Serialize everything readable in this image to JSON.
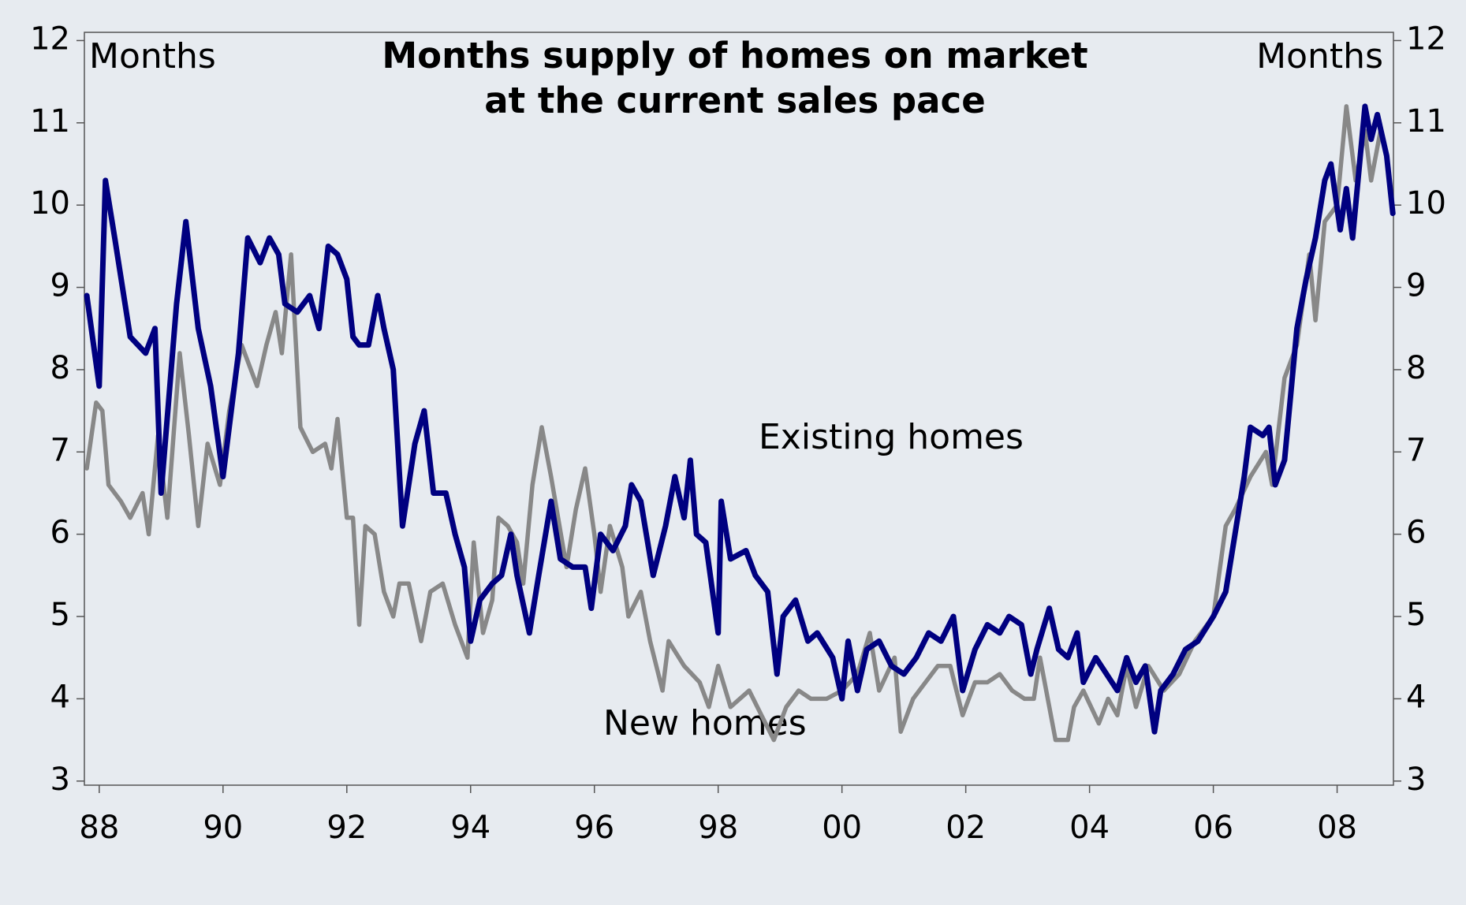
{
  "chart_data": {
    "type": "line",
    "title": [
      "Months supply of homes on market",
      "at the current sales pace"
    ],
    "ylabel": "Months",
    "y2label": "Months",
    "annotations": [
      "Existing homes",
      "New homes"
    ],
    "xlim": [
      1987.76,
      2008.91
    ],
    "xticks": [
      {
        "value": 1988,
        "label": "88"
      },
      {
        "value": 1990,
        "label": "90"
      },
      {
        "value": 1992,
        "label": "92"
      },
      {
        "value": 1994,
        "label": "94"
      },
      {
        "value": 1996,
        "label": "96"
      },
      {
        "value": 1998,
        "label": "98"
      },
      {
        "value": 2000,
        "label": "00"
      },
      {
        "value": 2002,
        "label": "02"
      },
      {
        "value": 2004,
        "label": "04"
      },
      {
        "value": 2006,
        "label": "06"
      },
      {
        "value": 2008,
        "label": "08"
      }
    ],
    "ylim": [
      2.95,
      12.1
    ],
    "yticks": [
      3,
      4,
      5,
      6,
      7,
      8,
      9,
      10,
      11,
      12
    ],
    "y2lim": [
      2.95,
      12.1
    ],
    "y2ticks": [
      3,
      4,
      5,
      6,
      7,
      8,
      9,
      10,
      11,
      12
    ],
    "grid": false,
    "series": [
      {
        "name": "New homes",
        "color": "#888888",
        "x": [
          1987.8,
          1987.95,
          1988.05,
          1988.15,
          1988.35,
          1988.5,
          1988.7,
          1988.8,
          1988.95,
          1989.1,
          1989.3,
          1989.45,
          1989.6,
          1989.75,
          1989.95,
          1990.1,
          1990.3,
          1990.55,
          1990.7,
          1990.85,
          1990.95,
          1991.1,
          1991.25,
          1991.45,
          1991.65,
          1991.75,
          1991.85,
          1992.0,
          1992.1,
          1992.2,
          1992.3,
          1992.45,
          1992.6,
          1992.75,
          1992.85,
          1993.0,
          1993.2,
          1993.35,
          1993.55,
          1993.75,
          1993.95,
          1994.05,
          1994.2,
          1994.35,
          1994.45,
          1994.6,
          1994.75,
          1994.85,
          1995.0,
          1995.15,
          1995.3,
          1995.55,
          1995.7,
          1995.85,
          1996.0,
          1996.1,
          1996.25,
          1996.45,
          1996.55,
          1996.75,
          1996.9,
          1997.1,
          1997.2,
          1997.45,
          1997.7,
          1997.85,
          1998.0,
          1998.2,
          1998.5,
          1998.7,
          1998.9,
          1999.1,
          1999.3,
          1999.5,
          1999.75,
          2000.0,
          2000.25,
          2000.45,
          2000.6,
          2000.85,
          2000.95,
          2001.15,
          2001.35,
          2001.55,
          2001.75,
          2001.95,
          2002.15,
          2002.35,
          2002.55,
          2002.75,
          2002.95,
          2003.1,
          2003.2,
          2003.45,
          2003.65,
          2003.75,
          2003.9,
          2004.15,
          2004.3,
          2004.45,
          2004.6,
          2004.75,
          2004.95,
          2005.2,
          2005.45,
          2005.7,
          2006.0,
          2006.2,
          2006.35,
          2006.6,
          2006.85,
          2006.95,
          2007.15,
          2007.35,
          2007.55,
          2007.65,
          2007.8,
          2008.0,
          2008.15,
          2008.3,
          2008.45,
          2008.55,
          2008.7
        ],
        "values": [
          6.8,
          7.6,
          7.5,
          6.6,
          6.4,
          6.2,
          6.5,
          6.0,
          7.2,
          6.2,
          8.2,
          7.2,
          6.1,
          7.1,
          6.6,
          7.5,
          8.3,
          7.8,
          8.3,
          8.7,
          8.2,
          9.4,
          7.3,
          7.0,
          7.1,
          6.8,
          7.4,
          6.2,
          6.2,
          4.9,
          6.1,
          6.0,
          5.3,
          5.0,
          5.4,
          5.4,
          4.7,
          5.3,
          5.4,
          4.9,
          4.5,
          5.9,
          4.8,
          5.2,
          6.2,
          6.1,
          5.9,
          5.4,
          6.6,
          7.3,
          6.7,
          5.6,
          6.3,
          6.8,
          6.0,
          5.3,
          6.1,
          5.6,
          5.0,
          5.3,
          4.7,
          4.1,
          4.7,
          4.4,
          4.2,
          3.9,
          4.4,
          3.9,
          4.1,
          3.8,
          3.5,
          3.9,
          4.1,
          4.0,
          4.0,
          4.1,
          4.3,
          4.8,
          4.1,
          4.5,
          3.6,
          4.0,
          4.2,
          4.4,
          4.4,
          3.8,
          4.2,
          4.2,
          4.3,
          4.1,
          4.0,
          4.0,
          4.5,
          3.5,
          3.5,
          3.9,
          4.1,
          3.7,
          4.0,
          3.8,
          4.4,
          3.9,
          4.4,
          4.1,
          4.3,
          4.7,
          5.0,
          6.1,
          6.3,
          6.7,
          7.0,
          6.6,
          7.9,
          8.3,
          9.4,
          8.6,
          9.8,
          10.0,
          11.2,
          10.3,
          10.9,
          10.3,
          10.9
        ]
      },
      {
        "name": "Existing homes",
        "color": "#000080",
        "x": [
          1987.8,
          1988.0,
          1988.1,
          1988.25,
          1988.5,
          1988.75,
          1988.9,
          1989.0,
          1989.25,
          1989.4,
          1989.6,
          1989.8,
          1990.0,
          1990.25,
          1990.4,
          1990.6,
          1990.75,
          1990.9,
          1991.0,
          1991.2,
          1991.4,
          1991.55,
          1991.7,
          1991.85,
          1992.0,
          1992.1,
          1992.2,
          1992.35,
          1992.5,
          1992.6,
          1992.75,
          1992.9,
          1993.1,
          1993.25,
          1993.4,
          1993.6,
          1993.75,
          1993.9,
          1994.0,
          1994.15,
          1994.35,
          1994.5,
          1994.65,
          1994.75,
          1994.95,
          1995.1,
          1995.3,
          1995.45,
          1995.65,
          1995.85,
          1995.95,
          1996.1,
          1996.3,
          1996.5,
          1996.6,
          1996.75,
          1996.95,
          1997.15,
          1997.3,
          1997.45,
          1997.55,
          1997.65,
          1997.8,
          1998.0,
          1998.05,
          1998.2,
          1998.45,
          1998.6,
          1998.8,
          1998.95,
          1999.05,
          1999.25,
          1999.45,
          1999.6,
          1999.85,
          2000.0,
          2000.1,
          2000.25,
          2000.4,
          2000.6,
          2000.8,
          2001.0,
          2001.2,
          2001.4,
          2001.6,
          2001.8,
          2001.95,
          2002.15,
          2002.35,
          2002.55,
          2002.7,
          2002.9,
          2003.05,
          2003.15,
          2003.35,
          2003.5,
          2003.65,
          2003.8,
          2003.9,
          2004.1,
          2004.45,
          2004.6,
          2004.75,
          2004.9,
          2005.05,
          2005.15,
          2005.35,
          2005.55,
          2005.75,
          2006.0,
          2006.2,
          2006.5,
          2006.6,
          2006.8,
          2006.9,
          2007.0,
          2007.15,
          2007.35,
          2007.5,
          2007.65,
          2007.8,
          2007.9,
          2008.05,
          2008.15,
          2008.25,
          2008.35,
          2008.45,
          2008.55,
          2008.65,
          2008.8,
          2008.9
        ],
        "values": [
          8.9,
          7.8,
          10.3,
          9.6,
          8.4,
          8.2,
          8.5,
          6.5,
          8.8,
          9.8,
          8.5,
          7.8,
          6.7,
          8.2,
          9.6,
          9.3,
          9.6,
          9.4,
          8.8,
          8.7,
          8.9,
          8.5,
          9.5,
          9.4,
          9.1,
          8.4,
          8.3,
          8.3,
          8.9,
          8.5,
          8.0,
          6.1,
          7.1,
          7.5,
          6.5,
          6.5,
          6.0,
          5.6,
          4.7,
          5.2,
          5.4,
          5.5,
          6.0,
          5.5,
          4.8,
          5.5,
          6.4,
          5.7,
          5.6,
          5.6,
          5.1,
          6.0,
          5.8,
          6.1,
          6.6,
          6.4,
          5.5,
          6.1,
          6.7,
          6.2,
          6.9,
          6.0,
          5.9,
          4.8,
          6.4,
          5.7,
          5.8,
          5.5,
          5.3,
          4.3,
          5.0,
          5.2,
          4.7,
          4.8,
          4.5,
          4.0,
          4.7,
          4.1,
          4.6,
          4.7,
          4.4,
          4.3,
          4.5,
          4.8,
          4.7,
          5.0,
          4.1,
          4.6,
          4.9,
          4.8,
          5.0,
          4.9,
          4.3,
          4.6,
          5.1,
          4.6,
          4.5,
          4.8,
          4.2,
          4.5,
          4.1,
          4.5,
          4.2,
          4.4,
          3.6,
          4.1,
          4.3,
          4.6,
          4.7,
          5.0,
          5.3,
          6.7,
          7.3,
          7.2,
          7.3,
          6.6,
          6.9,
          8.5,
          9.1,
          9.6,
          10.3,
          10.5,
          9.7,
          10.2,
          9.6,
          10.4,
          11.2,
          10.8,
          11.1,
          10.6,
          9.9
        ]
      }
    ]
  }
}
